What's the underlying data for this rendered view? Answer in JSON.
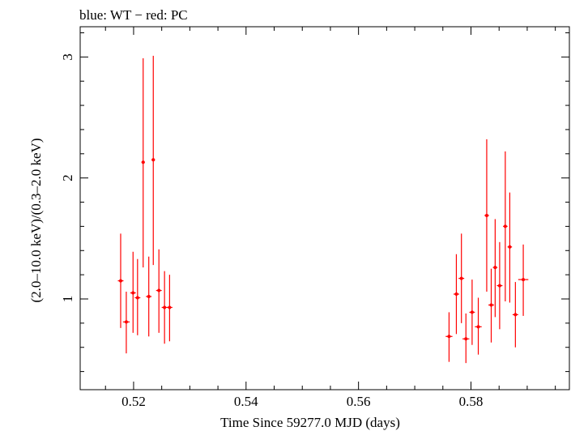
{
  "chart_data": {
    "type": "scatter",
    "title": "blue: WT − red: PC",
    "xlabel": "Time Since 59277.0 MJD (days)",
    "ylabel": "(2.0–10.0 keV)/(0.3–2.0 keV)",
    "xlim": [
      0.5105,
      0.5975
    ],
    "ylim": [
      0.25,
      3.25
    ],
    "xscale": "linear",
    "yscale": "linear",
    "grid": false,
    "x_ticks": [
      0.52,
      0.54,
      0.56,
      0.58
    ],
    "x_tick_labels": [
      "0.52",
      "0.54",
      "0.56",
      "0.58"
    ],
    "y_ticks": [
      1,
      2,
      3
    ],
    "y_tick_labels": [
      "1",
      "2",
      "3"
    ],
    "colors": {
      "PC": "#ff0000",
      "WT": "#0000ff",
      "axis": "#000000"
    },
    "series": [
      {
        "name": "PC",
        "color": "#ff0000",
        "points": [
          {
            "x": 0.5177,
            "y": 1.15,
            "ylo": 0.76,
            "yhi": 1.54,
            "xerr": 0.0005
          },
          {
            "x": 0.5187,
            "y": 0.81,
            "ylo": 0.55,
            "yhi": 1.06,
            "xerr": 0.0006
          },
          {
            "x": 0.5199,
            "y": 1.05,
            "ylo": 0.72,
            "yhi": 1.39,
            "xerr": 0.0005
          },
          {
            "x": 0.5207,
            "y": 1.01,
            "ylo": 0.7,
            "yhi": 1.33,
            "xerr": 0.0005
          },
          {
            "x": 0.5217,
            "y": 2.13,
            "ylo": 1.26,
            "yhi": 2.99,
            "xerr": 0.0003
          },
          {
            "x": 0.5227,
            "y": 1.02,
            "ylo": 0.69,
            "yhi": 1.35,
            "xerr": 0.0005
          },
          {
            "x": 0.5235,
            "y": 2.15,
            "ylo": 1.28,
            "yhi": 3.01,
            "xerr": 0.0003
          },
          {
            "x": 0.5245,
            "y": 1.07,
            "ylo": 0.72,
            "yhi": 1.41,
            "xerr": 0.0005
          },
          {
            "x": 0.5255,
            "y": 0.93,
            "ylo": 0.63,
            "yhi": 1.23,
            "xerr": 0.0005
          },
          {
            "x": 0.5264,
            "y": 0.93,
            "ylo": 0.65,
            "yhi": 1.2,
            "xerr": 0.0005
          },
          {
            "x": 0.5761,
            "y": 0.69,
            "ylo": 0.48,
            "yhi": 0.89,
            "xerr": 0.0006
          },
          {
            "x": 0.5774,
            "y": 1.04,
            "ylo": 0.71,
            "yhi": 1.37,
            "xerr": 0.0005
          },
          {
            "x": 0.5783,
            "y": 1.17,
            "ylo": 0.8,
            "yhi": 1.54,
            "xerr": 0.0005
          },
          {
            "x": 0.5791,
            "y": 0.67,
            "ylo": 0.47,
            "yhi": 0.88,
            "xerr": 0.0006
          },
          {
            "x": 0.5802,
            "y": 0.89,
            "ylo": 0.62,
            "yhi": 1.16,
            "xerr": 0.0005
          },
          {
            "x": 0.5813,
            "y": 0.77,
            "ylo": 0.54,
            "yhi": 1.01,
            "xerr": 0.0006
          },
          {
            "x": 0.5828,
            "y": 1.69,
            "ylo": 1.06,
            "yhi": 2.32,
            "xerr": 0.0004
          },
          {
            "x": 0.5836,
            "y": 0.95,
            "ylo": 0.64,
            "yhi": 1.25,
            "xerr": 0.0005
          },
          {
            "x": 0.5843,
            "y": 1.26,
            "ylo": 0.85,
            "yhi": 1.66,
            "xerr": 0.0004
          },
          {
            "x": 0.5851,
            "y": 1.11,
            "ylo": 0.75,
            "yhi": 1.47,
            "xerr": 0.0005
          },
          {
            "x": 0.5861,
            "y": 1.6,
            "ylo": 0.98,
            "yhi": 2.22,
            "xerr": 0.0004
          },
          {
            "x": 0.5869,
            "y": 1.43,
            "ylo": 0.97,
            "yhi": 1.88,
            "xerr": 0.0004
          },
          {
            "x": 0.5879,
            "y": 0.87,
            "ylo": 0.6,
            "yhi": 1.14,
            "xerr": 0.0005
          },
          {
            "x": 0.5893,
            "y": 1.16,
            "ylo": 0.86,
            "yhi": 1.45,
            "xerr": 0.0009
          }
        ]
      }
    ]
  }
}
